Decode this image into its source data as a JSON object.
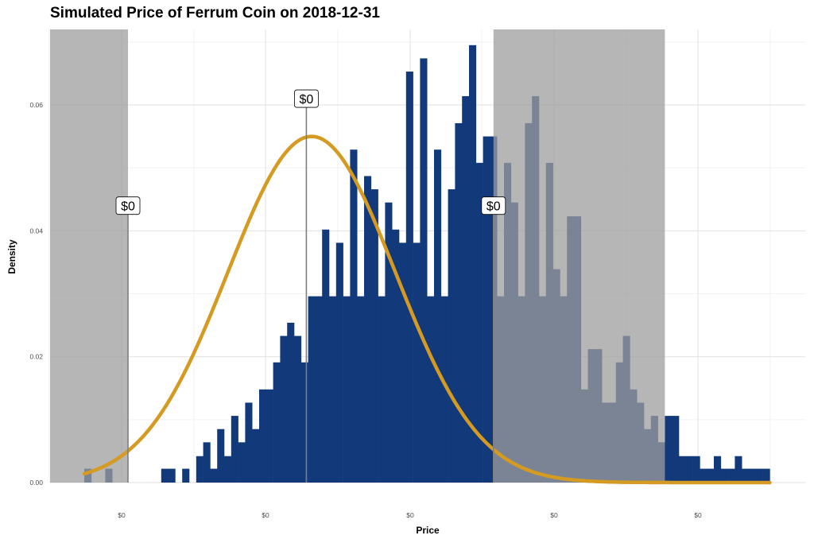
{
  "colors": {
    "bar": "#123a7a",
    "curve": "#d49a21",
    "shade": "#9e9e9e",
    "grid": "#e5e5e5",
    "annotation_line": "#7f7f7f"
  },
  "chart_data": {
    "type": "bar",
    "title": "Simulated Price of Ferrum Coin on 2018-12-31",
    "xlabel": "Price",
    "ylabel": "Density",
    "x_tick_labels": [
      "$0",
      "$0",
      "$0",
      "$0",
      "$0"
    ],
    "y_tick_labels": [
      "0.00",
      "0.02",
      "0.04",
      "0.06"
    ],
    "ylim": [
      0,
      0.072
    ],
    "y_ticks": [
      0,
      0.02,
      0.04,
      0.06
    ],
    "grid": true,
    "annotations": [
      {
        "label": "$0",
        "bin": 6.25
      },
      {
        "label": "$0",
        "bin": 31.75
      },
      {
        "label": "$0",
        "bin": 58.5
      }
    ],
    "shaded_regions": [
      [
        -12,
        6.25
      ],
      [
        58.5,
        83
      ]
    ],
    "density_curve": {
      "mean_bin": 32.5,
      "sd_bins": 12.0,
      "peak": 0.055
    },
    "histogram": {
      "bin_values": [
        0.0022,
        0,
        0,
        0.0022,
        0,
        0,
        0,
        0,
        0,
        0,
        0,
        0.0022,
        0.0022,
        0,
        0.0022,
        0,
        0.0042,
        0.0064,
        0.0022,
        0.0085,
        0.0042,
        0.0106,
        0.0064,
        0.0127,
        0.0085,
        0.0148,
        0.0148,
        0.0191,
        0.0233,
        0.0254,
        0.0233,
        0.0191,
        0.0296,
        0.0296,
        0.0402,
        0.0296,
        0.0381,
        0.0296,
        0.0529,
        0.0296,
        0.0487,
        0.0466,
        0.0296,
        0.0445,
        0.0402,
        0.0381,
        0.0653,
        0.0381,
        0.0674,
        0.0296,
        0.0529,
        0.0296,
        0.0466,
        0.0571,
        0.0614,
        0.0695,
        0.0508,
        0.055,
        0.055,
        0.0296,
        0.0508,
        0.0445,
        0.0296,
        0.0571,
        0.0614,
        0.0296,
        0.0508,
        0.0339,
        0.0296,
        0.0423,
        0.0423,
        0.0148,
        0.0212,
        0.0212,
        0.0127,
        0.0127,
        0.0191,
        0.0233,
        0.0148,
        0.0127,
        0.0085,
        0.0106,
        0.0064,
        0.0106,
        0.0106,
        0.0042,
        0.0042,
        0.0042,
        0.0022,
        0.0022,
        0.0042,
        0.0022,
        0.0022,
        0.0042,
        0.0022,
        0.0022,
        0.0022,
        0.0022
      ]
    }
  }
}
